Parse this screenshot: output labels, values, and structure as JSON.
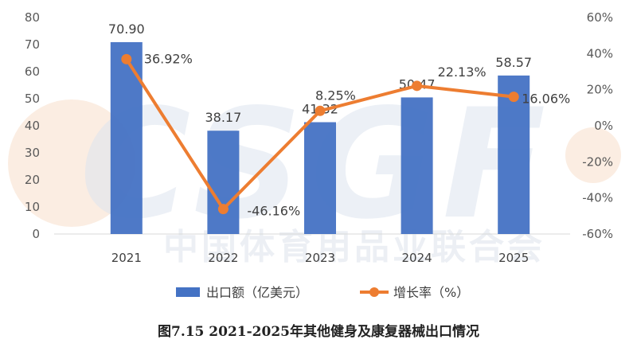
{
  "chart_data": {
    "type": "bar+line",
    "categories": [
      "2021",
      "2022",
      "2023",
      "2024",
      "2025"
    ],
    "series": [
      {
        "name": "出口额（亿美元）",
        "type": "bar",
        "axis": "left",
        "values": [
          70.9,
          38.17,
          41.32,
          50.47,
          58.57
        ],
        "labels": [
          "70.90",
          "38.17",
          "41.32",
          "50.47",
          "58.57"
        ],
        "color": "#4472C4"
      },
      {
        "name": "增长率（%）",
        "type": "line",
        "axis": "right",
        "values": [
          36.92,
          -46.16,
          8.25,
          22.13,
          16.06
        ],
        "labels": [
          "36.92%",
          "-46.16%",
          "8.25%",
          "22.13%",
          "16.06%"
        ],
        "color": "#ED7D31"
      }
    ],
    "y_left": {
      "ylim": [
        0,
        80
      ],
      "ticks": [
        "0",
        "10",
        "20",
        "30",
        "40",
        "50",
        "60",
        "70",
        "80"
      ]
    },
    "y_right": {
      "ylim": [
        -60,
        60
      ],
      "ticks": [
        "-60%",
        "-40%",
        "-20%",
        "0%",
        "20%",
        "40%",
        "60%"
      ]
    },
    "legend": "bottom",
    "grid": false
  },
  "watermark": {
    "logo_text": "CSGF",
    "org_text": "中国体育用品业联合会"
  },
  "caption": "图7.15 2021-2025年其他健身及康复器械出口情况"
}
